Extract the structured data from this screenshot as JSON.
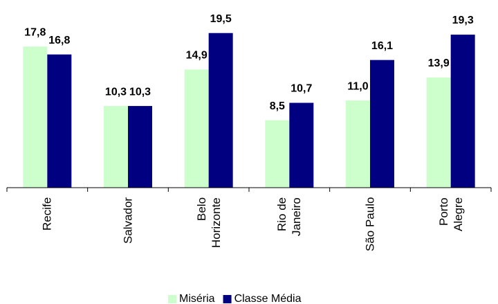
{
  "chart_data": {
    "type": "bar",
    "categories": [
      "Recife",
      "Salvador",
      "Belo\nHorizonte",
      "Rio de\nJaneiro",
      "São Paulo",
      "Porto\nAlegre"
    ],
    "series": [
      {
        "name": "Miséria",
        "color": "#ccffcc",
        "values": [
          17.8,
          10.3,
          14.9,
          8.5,
          11.0,
          13.9
        ],
        "value_labels": [
          "17,8",
          "10,3",
          "14,9",
          "8,5",
          "11,0",
          "13,9"
        ]
      },
      {
        "name": "Classe Média",
        "color": "#000080",
        "values": [
          16.8,
          10.3,
          19.5,
          10.7,
          16.1,
          19.3
        ],
        "value_labels": [
          "16,8",
          "10,3",
          "19,5",
          "10,7",
          "16,1",
          "19,3"
        ]
      }
    ],
    "ylim": [
      0,
      20
    ],
    "legend": "bottom"
  }
}
